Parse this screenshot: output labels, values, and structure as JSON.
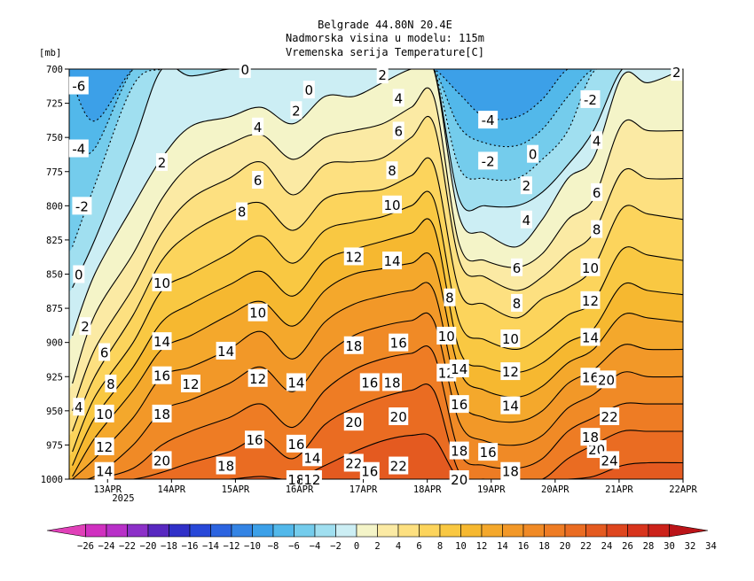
{
  "chart_data": {
    "type": "contour",
    "title": [
      "Belgrade  44.80N 20.4E",
      "Nadmorska visina u modelu: 115m",
      "Vremenska serija Temperature[C]"
    ],
    "ylabel": "[mb]",
    "y_levels": [
      700,
      725,
      750,
      775,
      800,
      825,
      850,
      875,
      900,
      925,
      950,
      975,
      1000
    ],
    "ylim": [
      1000,
      700
    ],
    "x_ticks": [
      "13APR",
      "14APR",
      "15APR",
      "16APR",
      "17APR",
      "18APR",
      "19APR",
      "20APR",
      "21APR",
      "22APR"
    ],
    "x_year_label": "2025",
    "xlim_days": [
      12.4,
      22.0
    ],
    "contour_interval": 2,
    "isotherms": [
      -6,
      -4,
      -2,
      0,
      2,
      4,
      6,
      8,
      10,
      12,
      14,
      16,
      18,
      20,
      22,
      24
    ],
    "isotherm_profiles": {
      "t_days": [
        12.45,
        12.8,
        13.4,
        13.85,
        14.3,
        14.9,
        15.4,
        15.9,
        16.4,
        16.85,
        17.3,
        17.75,
        18.1,
        18.5,
        18.9,
        19.4,
        19.8,
        20.2,
        20.6,
        21.05,
        21.45,
        22.0
      ],
      "levels_mb": {
        "-6": [
          710,
          738,
          700,
          700,
          700,
          700,
          700,
          700,
          700,
          700,
          700,
          700,
          700,
          718,
          735,
          735,
          722,
          700,
          700,
          700,
          700,
          700
        ],
        "-4": [
          760,
          758,
          700,
          700,
          700,
          700,
          700,
          700,
          700,
          700,
          700,
          700,
          700,
          742,
          754,
          756,
          744,
          720,
          700,
          700,
          700,
          700
        ],
        "-2": [
          830,
          785,
          712,
          700,
          700,
          700,
          700,
          700,
          700,
          700,
          700,
          700,
          700,
          772,
          780,
          780,
          766,
          745,
          702,
          700,
          700,
          700
        ],
        "0": [
          860,
          825,
          755,
          700,
          705,
          700,
          700,
          700,
          700,
          700,
          700,
          700,
          700,
          795,
          800,
          800,
          790,
          770,
          745,
          700,
          700,
          700
        ],
        "2": [
          895,
          850,
          800,
          765,
          742,
          735,
          728,
          740,
          720,
          720,
          710,
          700,
          700,
          808,
          820,
          830,
          810,
          780,
          765,
          705,
          710,
          700
        ],
        "4": [
          930,
          880,
          835,
          795,
          770,
          755,
          748,
          766,
          750,
          745,
          740,
          728,
          720,
          828,
          840,
          845,
          835,
          810,
          795,
          740,
          745,
          745
        ],
        "6": [
          950,
          905,
          860,
          820,
          795,
          780,
          768,
          792,
          770,
          768,
          765,
          750,
          740,
          840,
          852,
          862,
          852,
          835,
          820,
          775,
          780,
          780
        ],
        "8": [
          965,
          925,
          880,
          840,
          820,
          805,
          798,
          818,
          795,
          790,
          788,
          778,
          770,
          862,
          872,
          882,
          868,
          860,
          845,
          802,
          806,
          810
        ],
        "10": [
          980,
          940,
          900,
          862,
          850,
          835,
          822,
          842,
          818,
          812,
          808,
          800,
          795,
          885,
          898,
          905,
          895,
          880,
          870,
          832,
          836,
          840
        ],
        "12": [
          990,
          955,
          918,
          885,
          872,
          858,
          848,
          866,
          840,
          832,
          826,
          820,
          815,
          905,
          918,
          922,
          915,
          900,
          890,
          858,
          862,
          865
        ],
        "14": [
          998,
          970,
          935,
          905,
          895,
          880,
          870,
          888,
          862,
          850,
          846,
          842,
          840,
          920,
          935,
          940,
          932,
          915,
          905,
          880,
          882,
          885
        ],
        "16": [
          1000,
          985,
          955,
          925,
          918,
          905,
          892,
          912,
          885,
          872,
          866,
          862,
          862,
          940,
          955,
          958,
          950,
          930,
          920,
          902,
          905,
          905
        ],
        "18": [
          1000,
          998,
          975,
          950,
          942,
          930,
          918,
          936,
          910,
          895,
          888,
          884,
          884,
          958,
          972,
          975,
          968,
          948,
          938,
          922,
          925,
          925
        ],
        "20": [
          1000,
          1000,
          992,
          975,
          965,
          955,
          945,
          962,
          935,
          920,
          912,
          908,
          908,
          980,
          990,
          992,
          985,
          965,
          955,
          945,
          945,
          945
        ],
        "22": [
          1000,
          1000,
          1000,
          995,
          988,
          980,
          970,
          985,
          960,
          948,
          940,
          935,
          935,
          995,
          1000,
          1000,
          1000,
          985,
          975,
          965,
          965,
          965
        ],
        "24": [
          1000,
          1000,
          1000,
          1000,
          1000,
          1000,
          998,
          1000,
          990,
          980,
          972,
          968,
          970,
          1000,
          1000,
          1000,
          1000,
          1000,
          998,
          990,
          988,
          988
        ]
      }
    },
    "contour_labels": [
      {
        "text": "-6",
        "t": 12.55,
        "p": 712
      },
      {
        "text": "-4",
        "t": 12.55,
        "p": 758
      },
      {
        "text": "-2",
        "t": 12.6,
        "p": 800
      },
      {
        "text": "0",
        "t": 12.55,
        "p": 850
      },
      {
        "text": "2",
        "t": 12.65,
        "p": 888
      },
      {
        "text": "6",
        "t": 12.95,
        "p": 907
      },
      {
        "text": "8",
        "t": 13.05,
        "p": 930
      },
      {
        "text": "4",
        "t": 12.55,
        "p": 947
      },
      {
        "text": "10",
        "t": 12.95,
        "p": 952
      },
      {
        "text": "12",
        "t": 12.95,
        "p": 976
      },
      {
        "text": "14",
        "t": 12.95,
        "p": 994
      },
      {
        "text": "2",
        "t": 13.85,
        "p": 768
      },
      {
        "text": "10",
        "t": 13.85,
        "p": 856
      },
      {
        "text": "14",
        "t": 13.85,
        "p": 899
      },
      {
        "text": "16",
        "t": 13.85,
        "p": 924
      },
      {
        "text": "18",
        "t": 13.85,
        "p": 952
      },
      {
        "text": "20",
        "t": 13.85,
        "p": 986
      },
      {
        "text": "12",
        "t": 14.3,
        "p": 930
      },
      {
        "text": "14",
        "t": 14.85,
        "p": 906
      },
      {
        "text": "18",
        "t": 14.85,
        "p": 990
      },
      {
        "text": "16",
        "t": 15.3,
        "p": 971
      },
      {
        "text": "0",
        "t": 15.15,
        "p": 700
      },
      {
        "text": "4",
        "t": 15.35,
        "p": 742
      },
      {
        "text": "6",
        "t": 15.35,
        "p": 781
      },
      {
        "text": "2",
        "t": 15.95,
        "p": 730
      },
      {
        "text": "8",
        "t": 15.1,
        "p": 804
      },
      {
        "text": "10",
        "t": 15.35,
        "p": 878
      },
      {
        "text": "12",
        "t": 15.35,
        "p": 926
      },
      {
        "text": "14",
        "t": 15.95,
        "p": 929
      },
      {
        "text": "16",
        "t": 15.95,
        "p": 974
      },
      {
        "text": "14",
        "t": 16.2,
        "p": 984
      },
      {
        "text": "18",
        "t": 15.95,
        "p": 1000
      },
      {
        "text": "12",
        "t": 16.2,
        "p": 1000
      },
      {
        "text": "0",
        "t": 16.15,
        "p": 715
      },
      {
        "text": "12",
        "t": 16.85,
        "p": 837
      },
      {
        "text": "18",
        "t": 16.85,
        "p": 902
      },
      {
        "text": "20",
        "t": 16.85,
        "p": 958
      },
      {
        "text": "22",
        "t": 16.85,
        "p": 988
      },
      {
        "text": "16",
        "t": 17.1,
        "p": 929
      },
      {
        "text": "16",
        "t": 17.1,
        "p": 994
      },
      {
        "text": "2",
        "t": 17.3,
        "p": 704
      },
      {
        "text": "4",
        "t": 17.55,
        "p": 721
      },
      {
        "text": "6",
        "t": 17.55,
        "p": 745
      },
      {
        "text": "8",
        "t": 17.45,
        "p": 774
      },
      {
        "text": "10",
        "t": 17.45,
        "p": 799
      },
      {
        "text": "14",
        "t": 17.45,
        "p": 840
      },
      {
        "text": "16",
        "t": 17.55,
        "p": 900
      },
      {
        "text": "18",
        "t": 17.45,
        "p": 929
      },
      {
        "text": "20",
        "t": 17.55,
        "p": 954
      },
      {
        "text": "22",
        "t": 17.55,
        "p": 990
      },
      {
        "text": "8",
        "t": 18.35,
        "p": 867
      },
      {
        "text": "10",
        "t": 18.3,
        "p": 895
      },
      {
        "text": "12",
        "t": 18.3,
        "p": 922
      },
      {
        "text": "14",
        "t": 18.5,
        "p": 919
      },
      {
        "text": "16",
        "t": 18.5,
        "p": 945
      },
      {
        "text": "18",
        "t": 18.5,
        "p": 979
      },
      {
        "text": "20",
        "t": 18.5,
        "p": 1000
      },
      {
        "text": "-4",
        "t": 18.95,
        "p": 737
      },
      {
        "text": "-2",
        "t": 18.95,
        "p": 767
      },
      {
        "text": "0",
        "t": 19.65,
        "p": 762
      },
      {
        "text": "2",
        "t": 19.55,
        "p": 785
      },
      {
        "text": "4",
        "t": 19.55,
        "p": 810
      },
      {
        "text": "6",
        "t": 19.4,
        "p": 845
      },
      {
        "text": "8",
        "t": 19.4,
        "p": 871
      },
      {
        "text": "10",
        "t": 19.3,
        "p": 897
      },
      {
        "text": "12",
        "t": 19.3,
        "p": 921
      },
      {
        "text": "14",
        "t": 19.3,
        "p": 946
      },
      {
        "text": "16",
        "t": 18.95,
        "p": 980
      },
      {
        "text": "18",
        "t": 19.3,
        "p": 994
      },
      {
        "text": "20",
        "t": 20.65,
        "p": 978
      },
      {
        "text": "-2",
        "t": 20.55,
        "p": 722
      },
      {
        "text": "4",
        "t": 20.65,
        "p": 752
      },
      {
        "text": "6",
        "t": 20.65,
        "p": 790
      },
      {
        "text": "8",
        "t": 20.65,
        "p": 817
      },
      {
        "text": "10",
        "t": 20.55,
        "p": 845
      },
      {
        "text": "12",
        "t": 20.55,
        "p": 869
      },
      {
        "text": "14",
        "t": 20.55,
        "p": 896
      },
      {
        "text": "16",
        "t": 20.55,
        "p": 925
      },
      {
        "text": "18",
        "t": 20.55,
        "p": 969
      },
      {
        "text": "20",
        "t": 20.8,
        "p": 927
      },
      {
        "text": "22",
        "t": 20.85,
        "p": 954
      },
      {
        "text": "24",
        "t": 20.85,
        "p": 986
      },
      {
        "text": "2",
        "t": 21.9,
        "p": 702
      }
    ],
    "colorbar": {
      "ticks": [
        -26,
        -24,
        -22,
        -20,
        -18,
        -16,
        -14,
        -12,
        -10,
        -8,
        -6,
        -4,
        -2,
        0,
        2,
        4,
        6,
        8,
        10,
        12,
        14,
        16,
        18,
        20,
        22,
        24,
        26,
        28,
        30,
        32,
        34
      ],
      "colors": [
        "#e040b8",
        "#d030c0",
        "#b830c8",
        "#8c30c8",
        "#5828c0",
        "#3030c8",
        "#2848d8",
        "#2c64e0",
        "#3484e4",
        "#3ca0e8",
        "#52b8ea",
        "#74ccec",
        "#a0dff0",
        "#cceef4",
        "#f4f4c8",
        "#fbeaa4",
        "#fde080",
        "#fcd45c",
        "#f9c842",
        "#f6b830",
        "#f4a82c",
        "#f29828",
        "#f08a26",
        "#ee7c24",
        "#ea6c22",
        "#e45a20",
        "#de461e",
        "#d8341c",
        "#cc221a",
        "#bb1418"
      ]
    },
    "grid": false,
    "legend": "colorbar-bottom"
  }
}
